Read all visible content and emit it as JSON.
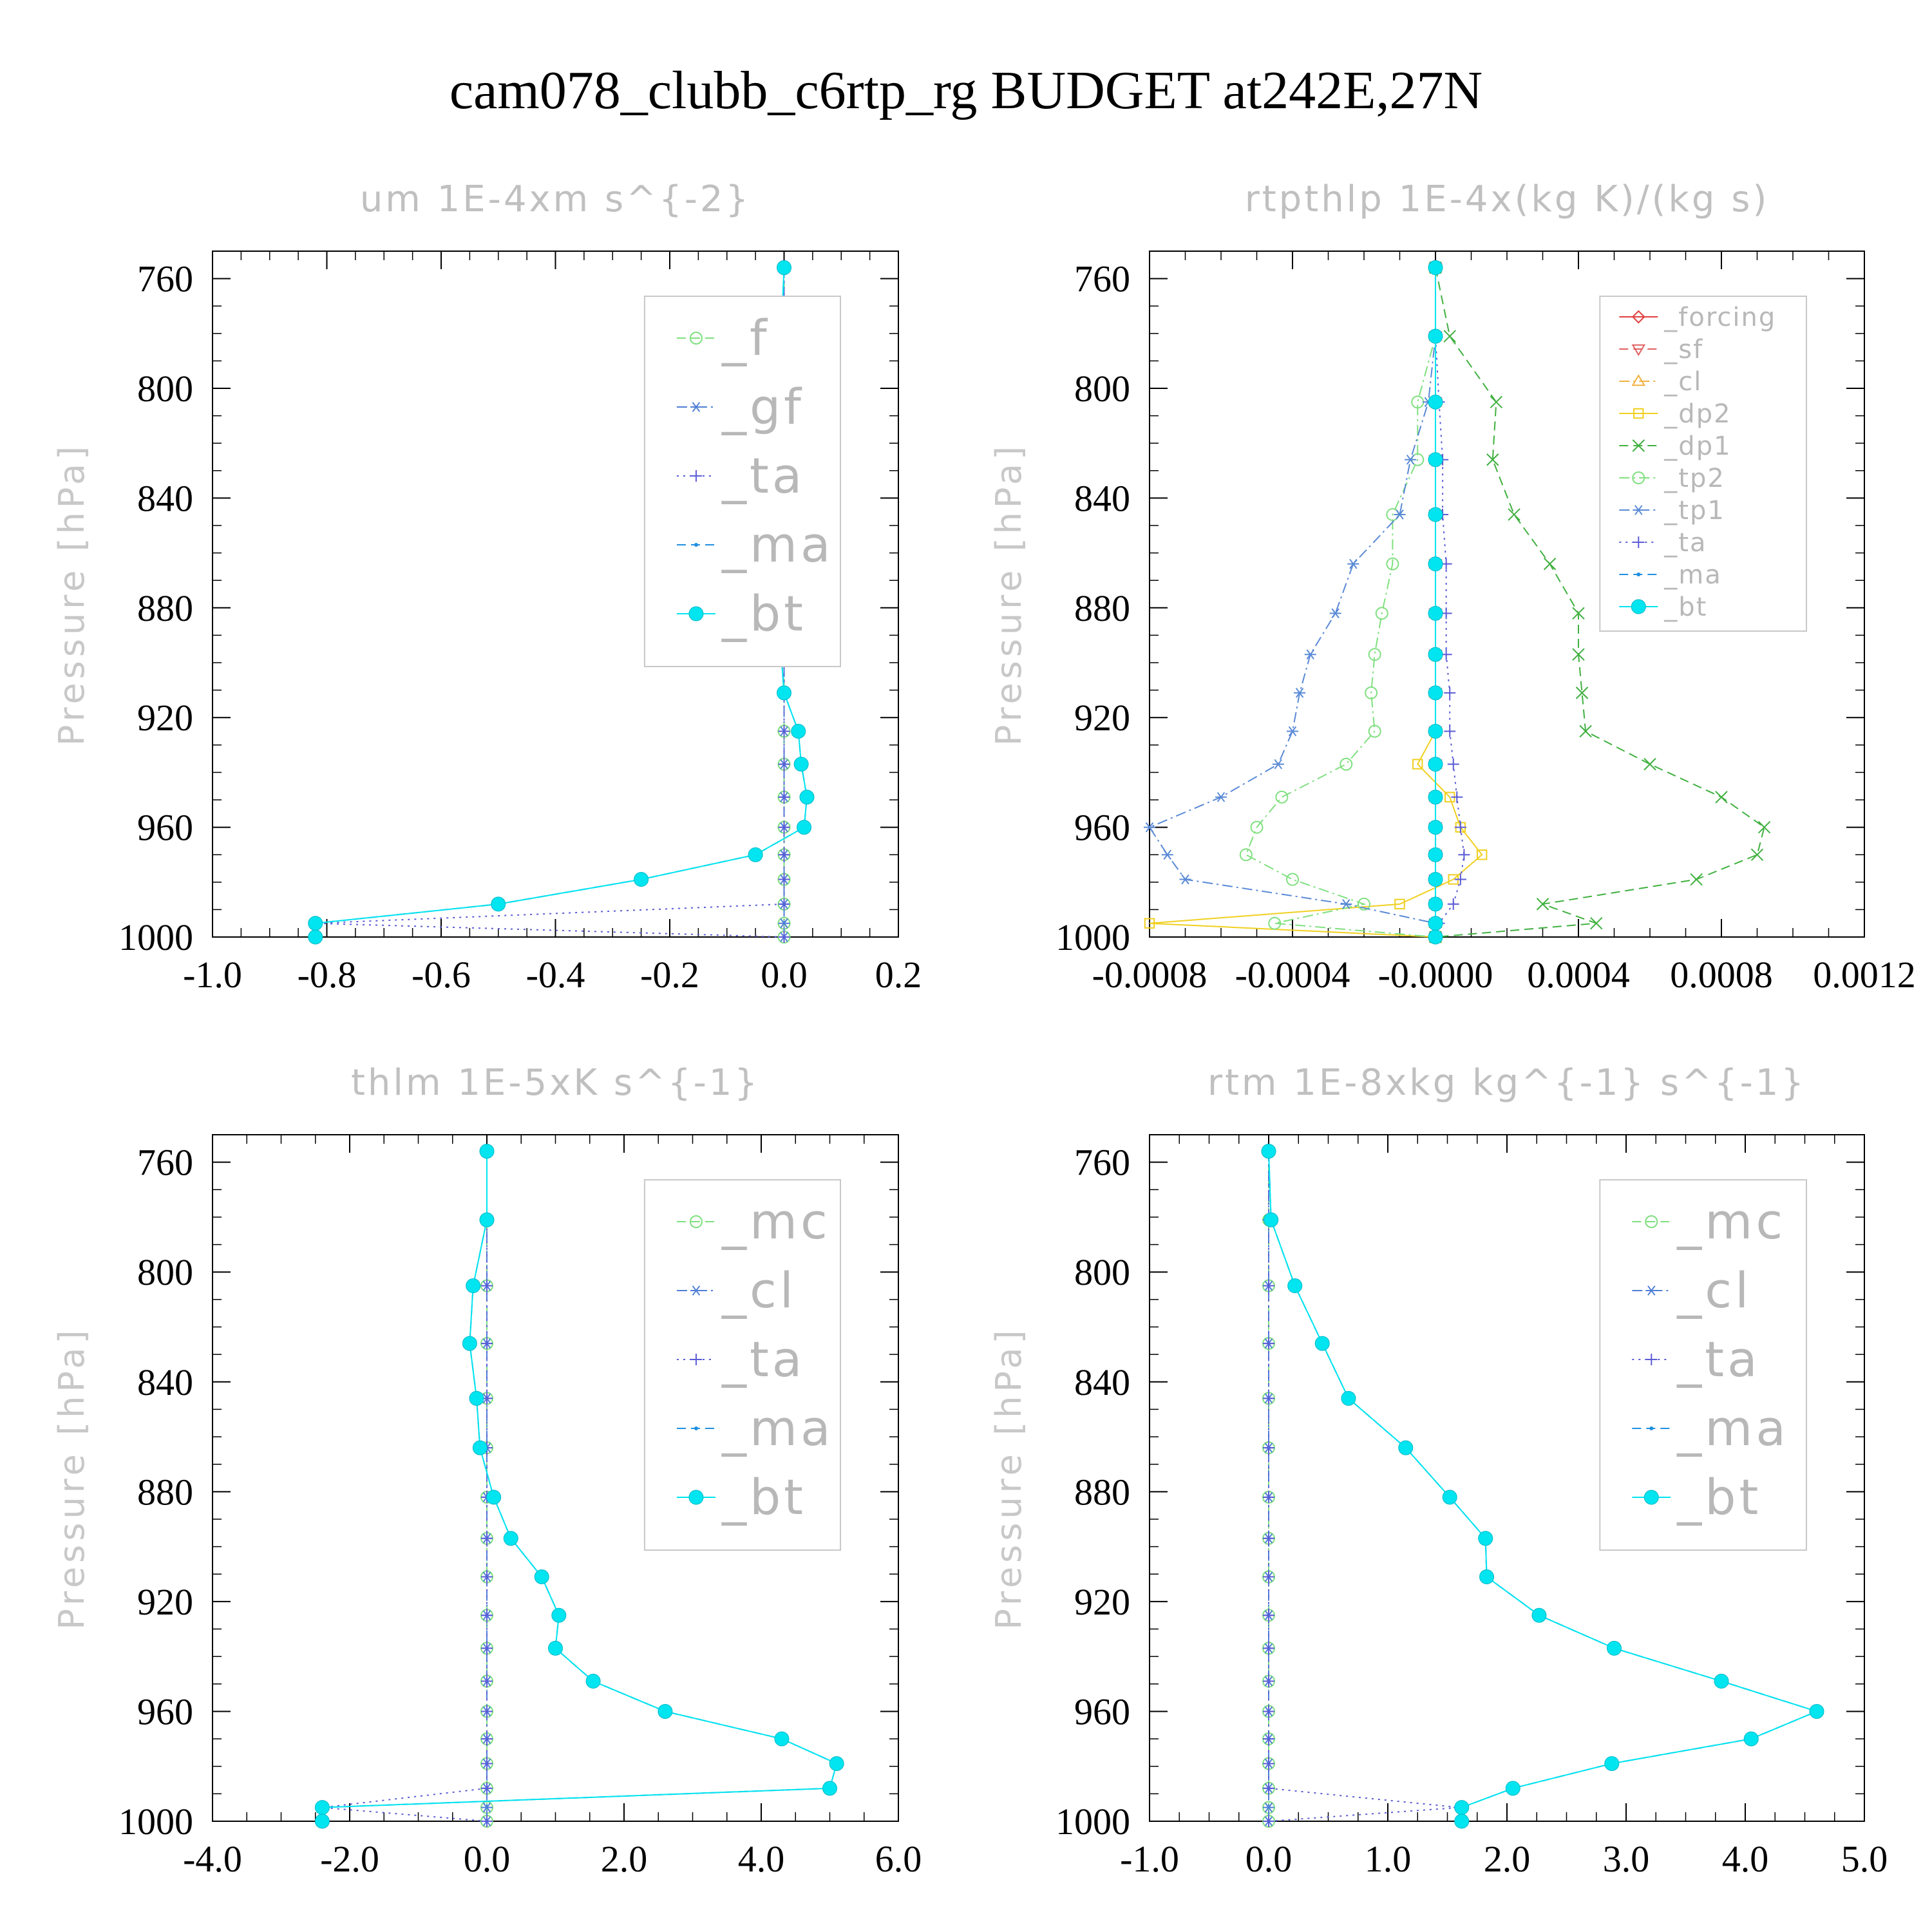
{
  "main_title": "cam078_clubb_c6rtp_rg  BUDGET at242E,27N",
  "chart_data": [
    {
      "id": "um",
      "type": "line",
      "title": "um   1E-4xm s^{-2}",
      "ylabel": "Pressure [hPa]",
      "xlim": [
        -1.0,
        0.2
      ],
      "ylim": [
        750,
        1000
      ],
      "y_inverted": true,
      "xticks": [
        "-1.0",
        "-0.8",
        "-0.6",
        "-0.4",
        "-0.2",
        "0.0",
        "0.2"
      ],
      "yticks": [
        "760",
        "800",
        "840",
        "880",
        "920",
        "960",
        "1000"
      ],
      "grid": false,
      "legend_position": "top-right",
      "levels": [
        756,
        781,
        805,
        826,
        846,
        864,
        882,
        897,
        911,
        925,
        937,
        949,
        960,
        970,
        979,
        988,
        995,
        1000
      ],
      "series": [
        {
          "name": "_f",
          "color": "#7ee07e",
          "marker": "circle",
          "dash": "dash",
          "x": [
            0,
            0,
            0,
            0,
            0,
            0,
            0,
            0,
            0,
            0,
            0,
            0,
            0,
            0,
            0,
            0,
            0,
            0
          ]
        },
        {
          "name": "_gf",
          "color": "#4f7fd6",
          "marker": "asterisk",
          "dash": "dashdot",
          "x": [
            0,
            0,
            0,
            0,
            0,
            0,
            0,
            0,
            0,
            0,
            0,
            0,
            0,
            0,
            0,
            0,
            0,
            0
          ]
        },
        {
          "name": "_ta",
          "color": "#5b5bd6",
          "marker": "plus",
          "dash": "dot",
          "x": [
            0,
            0,
            0,
            0,
            0,
            0,
            0,
            0,
            0,
            0,
            0,
            0,
            0,
            0,
            0,
            0,
            -0.82,
            0
          ]
        },
        {
          "name": "_ma",
          "color": "#1f8fe0",
          "marker": "dot",
          "dash": "dash",
          "x": [
            0,
            -0.005,
            -0.005,
            -0.01,
            -0.03,
            -0.035,
            -0.025,
            -0.005,
            0,
            0.025,
            0.03,
            0.04,
            0.035,
            -0.05,
            -0.25,
            -0.5,
            -0.82,
            -0.82
          ]
        },
        {
          "name": "_bt",
          "color": "#00e5f0",
          "marker": "bigdot",
          "dash": "solid",
          "x": [
            0,
            -0.005,
            -0.005,
            -0.01,
            -0.03,
            -0.035,
            -0.025,
            -0.005,
            0,
            0.025,
            0.03,
            0.04,
            0.035,
            -0.05,
            -0.25,
            -0.5,
            -0.82,
            -0.82
          ]
        }
      ]
    },
    {
      "id": "rtpthlp",
      "type": "line",
      "title": "rtpthlp   1E-4x(kg K)/(kg s)",
      "ylabel": "Pressure [hPa]",
      "xlim": [
        -0.0008,
        0.0012
      ],
      "ylim": [
        750,
        1000
      ],
      "y_inverted": true,
      "xticks": [
        "-0.0008",
        "-0.0004",
        "-0.0000",
        "0.0004",
        "0.0008",
        "0.0012"
      ],
      "yticks": [
        "760",
        "800",
        "840",
        "880",
        "920",
        "960",
        "1000"
      ],
      "grid": false,
      "legend_position": "top-right",
      "levels": [
        756,
        781,
        805,
        826,
        846,
        864,
        882,
        897,
        911,
        925,
        937,
        949,
        960,
        970,
        979,
        988,
        995,
        1000
      ],
      "series": [
        {
          "name": "_forcing",
          "color": "#e04040",
          "marker": "diamond",
          "dash": "solid",
          "x": [
            0,
            0,
            0,
            0,
            0,
            0,
            0,
            0,
            0,
            0,
            0,
            0,
            0,
            0,
            0,
            0,
            0,
            0
          ]
        },
        {
          "name": "_sf",
          "color": "#e06060",
          "marker": "tri-down",
          "dash": "dash",
          "x": [
            0,
            0,
            0,
            0,
            0,
            0,
            0,
            0,
            0,
            0,
            0,
            0,
            0,
            0,
            0,
            0,
            0,
            0
          ]
        },
        {
          "name": "_cl",
          "color": "#f0b040",
          "marker": "tri-up",
          "dash": "dashdot",
          "x": [
            0,
            0,
            0,
            0,
            0,
            0,
            0,
            0,
            0,
            0,
            0,
            0,
            0,
            0,
            0,
            0,
            0,
            0
          ]
        },
        {
          "name": "_dp2",
          "color": "#f0d020",
          "marker": "square",
          "dash": "solid",
          "x": [
            0,
            0,
            0,
            0,
            0,
            0,
            0,
            0,
            0,
            0,
            -5e-05,
            4e-05,
            7e-05,
            0.00013,
            5e-05,
            -0.0001,
            -0.0008,
            0
          ]
        },
        {
          "name": "_dp1",
          "color": "#40b040",
          "marker": "cross",
          "dash": "dash",
          "x": [
            0,
            4e-05,
            0.00017,
            0.00016,
            0.00022,
            0.00032,
            0.0004,
            0.0004,
            0.00041,
            0.00042,
            0.0006,
            0.0008,
            0.00092,
            0.0009,
            0.00073,
            0.0003,
            0.00045,
            0
          ]
        },
        {
          "name": "_tp2",
          "color": "#80e080",
          "marker": "circle",
          "dash": "dashdot",
          "x": [
            0,
            0,
            -5e-05,
            -5e-05,
            -0.00012,
            -0.00012,
            -0.00015,
            -0.00017,
            -0.00018,
            -0.00017,
            -0.00025,
            -0.00043,
            -0.0005,
            -0.00053,
            -0.0004,
            -0.0002,
            -0.00045,
            0
          ]
        },
        {
          "name": "_tp1",
          "color": "#5a8ad6",
          "marker": "asterisk",
          "dash": "dashdot",
          "x": [
            0,
            0,
            -2e-05,
            -7e-05,
            -0.0001,
            -0.00023,
            -0.00028,
            -0.00035,
            -0.00038,
            -0.0004,
            -0.00044,
            -0.0006,
            -0.0008,
            -0.00075,
            -0.0007,
            -0.00025,
            0,
            0
          ]
        },
        {
          "name": "_ta",
          "color": "#5b5bd6",
          "marker": "plus",
          "dash": "dot",
          "x": [
            0,
            0,
            1e-05,
            2e-05,
            2e-05,
            3e-05,
            3e-05,
            3e-05,
            4e-05,
            4e-05,
            5e-05,
            6e-05,
            7e-05,
            8e-05,
            7e-05,
            5e-05,
            1e-05,
            0
          ]
        },
        {
          "name": "_ma",
          "color": "#1f8fe0",
          "marker": "dot",
          "dash": "dash",
          "x": [
            0,
            0,
            0,
            0,
            0,
            0,
            0,
            0,
            0,
            0,
            0,
            0,
            0,
            0,
            0,
            0,
            0,
            0
          ]
        },
        {
          "name": "_bt",
          "color": "#00e5f0",
          "marker": "bigdot",
          "dash": "solid",
          "x": [
            0,
            0,
            0,
            0,
            0,
            0,
            0,
            0,
            0,
            0,
            0,
            0,
            0,
            0,
            0,
            0,
            0,
            0
          ]
        }
      ]
    },
    {
      "id": "thlm",
      "type": "line",
      "title": "thlm   1E-5xK s^{-1}",
      "ylabel": "Pressure [hPa]",
      "xlim": [
        -4.0,
        6.0
      ],
      "ylim": [
        750,
        1000
      ],
      "y_inverted": true,
      "xticks": [
        "-4.0",
        "-2.0",
        "0.0",
        "2.0",
        "4.0",
        "6.0"
      ],
      "yticks": [
        "760",
        "800",
        "840",
        "880",
        "920",
        "960",
        "1000"
      ],
      "grid": false,
      "legend_position": "top-right",
      "levels": [
        756,
        781,
        805,
        826,
        846,
        864,
        882,
        897,
        911,
        925,
        937,
        949,
        960,
        970,
        979,
        988,
        995,
        1000
      ],
      "series": [
        {
          "name": "_mc",
          "color": "#7ee07e",
          "marker": "circle",
          "dash": "dash",
          "x": [
            0,
            0,
            0,
            0,
            0,
            0,
            0,
            0,
            0,
            0,
            0,
            0,
            0,
            0,
            0,
            0,
            0,
            0
          ]
        },
        {
          "name": "_cl",
          "color": "#4f7fd6",
          "marker": "asterisk",
          "dash": "dashdot",
          "x": [
            0,
            0,
            0,
            0,
            0,
            0,
            0,
            0,
            0,
            0,
            0,
            0,
            0,
            0,
            0,
            0,
            0,
            0
          ]
        },
        {
          "name": "_ta",
          "color": "#5b5bd6",
          "marker": "plus",
          "dash": "dot",
          "x": [
            0,
            0,
            0,
            0,
            0,
            0,
            0,
            0,
            0,
            0,
            0,
            0,
            0,
            0,
            0,
            0,
            -2.4,
            0
          ]
        },
        {
          "name": "_ma",
          "color": "#1f8fe0",
          "marker": "dot",
          "dash": "dash",
          "x": [
            0,
            0,
            -0.2,
            -0.25,
            -0.15,
            -0.1,
            0.1,
            0.35,
            0.8,
            1.05,
            1.0,
            1.55,
            2.6,
            4.3,
            5.1,
            5.0,
            -2.4,
            -2.4
          ]
        },
        {
          "name": "_bt",
          "color": "#00e5f0",
          "marker": "bigdot",
          "dash": "solid",
          "x": [
            0,
            0,
            -0.2,
            -0.25,
            -0.15,
            -0.1,
            0.1,
            0.35,
            0.8,
            1.05,
            1.0,
            1.55,
            2.6,
            4.3,
            5.1,
            5.0,
            -2.4,
            -2.4
          ]
        }
      ]
    },
    {
      "id": "rtm",
      "type": "line",
      "title": "rtm   1E-8xkg kg^{-1} s^{-1}",
      "ylabel": "Pressure [hPa]",
      "xlim": [
        -1.0,
        5.0
      ],
      "ylim": [
        750,
        1000
      ],
      "y_inverted": true,
      "xticks": [
        "-1.0",
        "0.0",
        "1.0",
        "2.0",
        "3.0",
        "4.0",
        "5.0"
      ],
      "yticks": [
        "760",
        "800",
        "840",
        "880",
        "920",
        "960",
        "1000"
      ],
      "grid": false,
      "legend_position": "top-right",
      "levels": [
        756,
        781,
        805,
        826,
        846,
        864,
        882,
        897,
        911,
        925,
        937,
        949,
        960,
        970,
        979,
        988,
        995,
        1000
      ],
      "series": [
        {
          "name": "_mc",
          "color": "#7ee07e",
          "marker": "circle",
          "dash": "dash",
          "x": [
            0,
            0,
            0,
            0,
            0,
            0,
            0,
            0,
            0,
            0,
            0,
            0,
            0,
            0,
            0,
            0,
            0,
            0
          ]
        },
        {
          "name": "_cl",
          "color": "#4f7fd6",
          "marker": "asterisk",
          "dash": "dashdot",
          "x": [
            0,
            0,
            0,
            0,
            0,
            0,
            0,
            0,
            0,
            0,
            0,
            0,
            0,
            0,
            0,
            0,
            0,
            0
          ]
        },
        {
          "name": "_ta",
          "color": "#5b5bd6",
          "marker": "plus",
          "dash": "dot",
          "x": [
            0,
            0,
            0,
            0,
            0,
            0,
            0,
            0,
            0,
            0,
            0,
            0,
            0,
            0,
            0,
            0,
            1.6,
            0
          ]
        },
        {
          "name": "_ma",
          "color": "#1f8fe0",
          "marker": "dot",
          "dash": "dash",
          "x": [
            0,
            0.02,
            0.22,
            0.45,
            0.67,
            1.15,
            1.52,
            1.82,
            1.83,
            2.27,
            2.9,
            3.8,
            4.6,
            4.05,
            2.88,
            2.05,
            1.62,
            1.62
          ]
        },
        {
          "name": "_bt",
          "color": "#00e5f0",
          "marker": "bigdot",
          "dash": "solid",
          "x": [
            0,
            0.02,
            0.22,
            0.45,
            0.67,
            1.15,
            1.52,
            1.82,
            1.83,
            2.27,
            2.9,
            3.8,
            4.6,
            4.05,
            2.88,
            2.05,
            1.62,
            1.62
          ]
        }
      ]
    }
  ]
}
